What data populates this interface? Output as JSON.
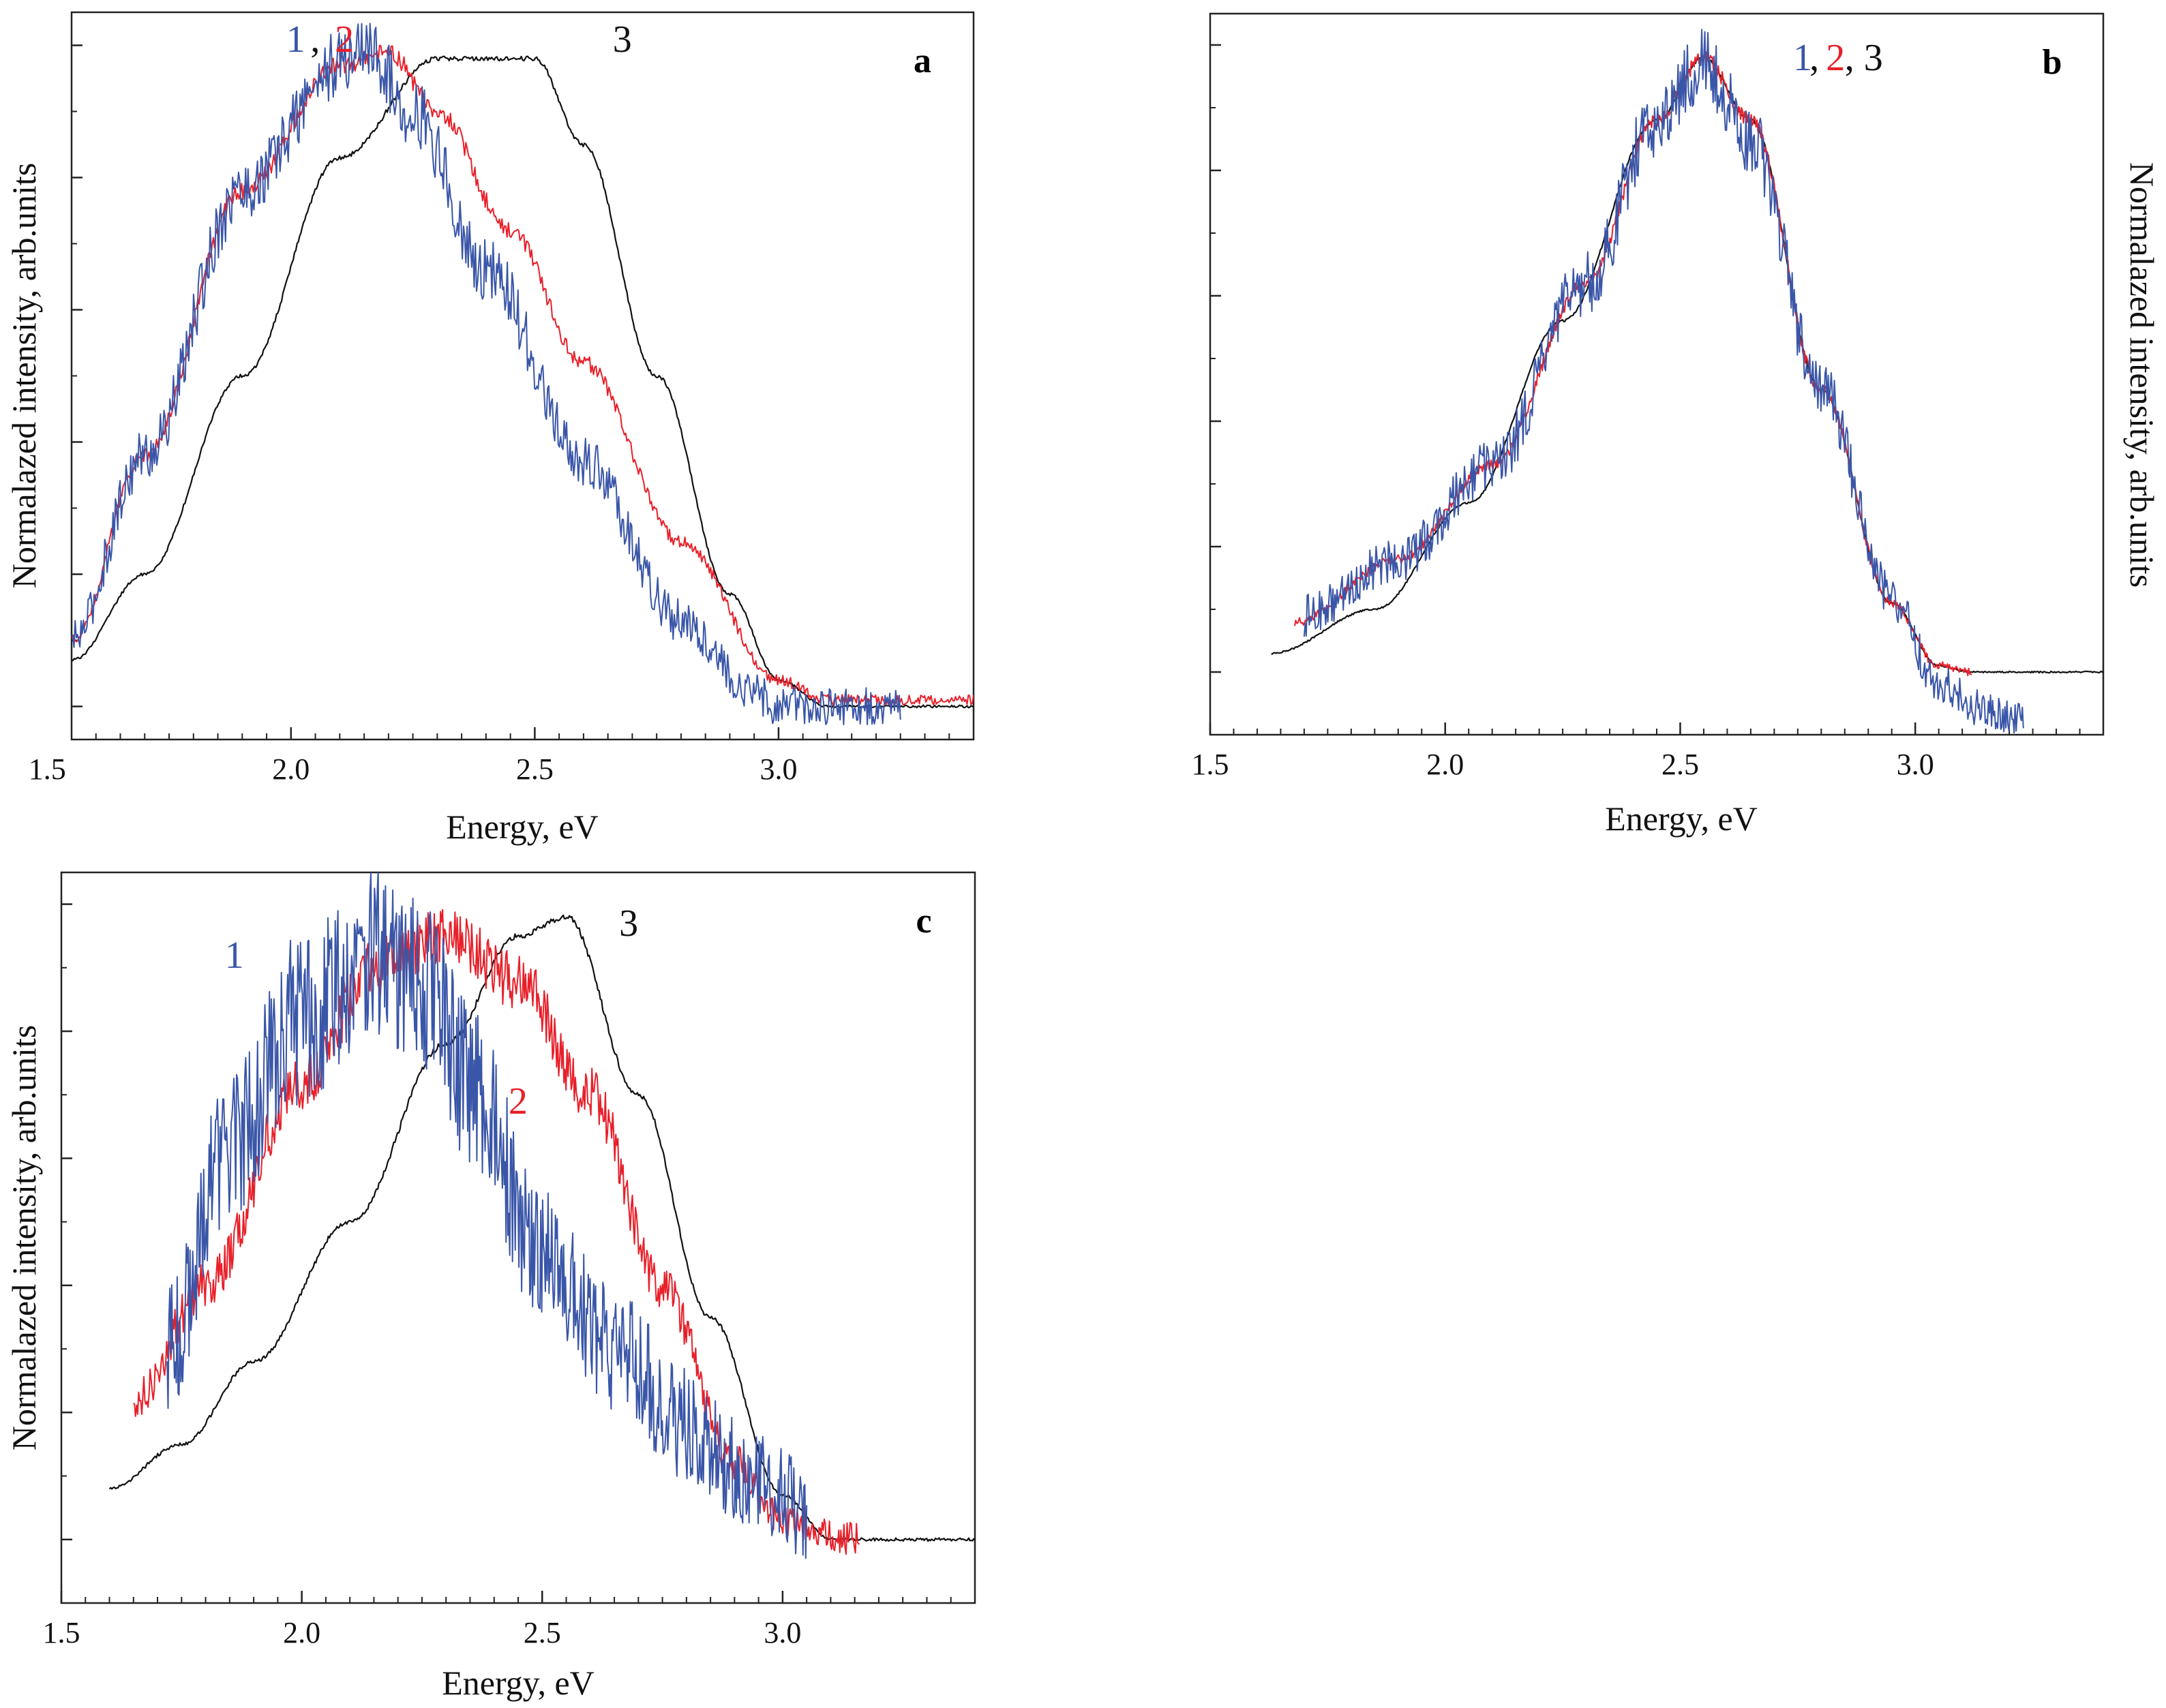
{
  "colors": {
    "series1": "#3a56a8",
    "series2": "#e8202a",
    "series3": "#111111",
    "axis": "#222222"
  },
  "chart_data": [
    {
      "panel": "a",
      "type": "line",
      "xlabel": "Energy, eV",
      "ylabel": "Normalazed intensity, arb.units",
      "ylabel_side": "left",
      "xlim": [
        1.55,
        3.4
      ],
      "ylim": [
        -0.05,
        1.05
      ],
      "x_ticks": [
        1.5,
        2.0,
        2.5,
        3.0
      ],
      "x_tick_labels": [
        "1.5",
        "2.0",
        "2.5",
        "3.0"
      ],
      "y_tick_count": 6,
      "show_xlabel": true,
      "labels": [
        {
          "text": "1",
          "series": "1",
          "at_x": 1.99,
          "at_y": 0.99
        },
        {
          "text": ",",
          "series": "3",
          "at_x": 2.04,
          "at_y": 0.99
        },
        {
          "text": "2",
          "series": "2",
          "at_x": 2.09,
          "at_y": 0.99
        },
        {
          "text": "3",
          "series": "3",
          "at_x": 2.66,
          "at_y": 0.99
        }
      ],
      "series": [
        {
          "name": "1",
          "color": "#3a56a8",
          "x_start": 1.55,
          "x_end": 3.25,
          "noise": 0.045,
          "x": [
            1.55,
            1.7,
            1.9,
            2.1,
            2.15,
            2.25,
            2.4,
            2.6,
            2.8,
            2.95,
            3.0,
            3.1,
            3.25
          ],
          "y": [
            0.1,
            0.38,
            0.78,
            0.97,
            1.0,
            0.9,
            0.66,
            0.37,
            0.13,
            0.02,
            0.0,
            0.0,
            0.0
          ]
        },
        {
          "name": "2",
          "color": "#e8202a",
          "x_start": 1.55,
          "x_end": 3.4,
          "noise": 0.012,
          "x": [
            1.55,
            1.7,
            1.9,
            2.1,
            2.2,
            2.3,
            2.45,
            2.6,
            2.8,
            3.0,
            3.1,
            3.4
          ],
          "y": [
            0.1,
            0.38,
            0.78,
            0.97,
            0.99,
            0.9,
            0.72,
            0.52,
            0.25,
            0.04,
            0.01,
            0.01
          ]
        },
        {
          "name": "3",
          "color": "#111111",
          "x_start": 1.55,
          "x_end": 3.4,
          "noise": 0.003,
          "x": [
            1.55,
            1.7,
            1.9,
            2.1,
            2.3,
            2.5,
            2.6,
            2.75,
            2.9,
            3.0,
            3.1,
            3.4
          ],
          "y": [
            0.07,
            0.2,
            0.5,
            0.83,
            0.98,
            0.98,
            0.85,
            0.5,
            0.17,
            0.04,
            0.0,
            0.0
          ]
        }
      ]
    },
    {
      "panel": "b",
      "type": "line",
      "xlabel": "Energy, eV",
      "ylabel": "Normalazed intensity, arb.units",
      "ylabel_side": "right",
      "xlim": [
        1.5,
        3.4
      ],
      "ylim": [
        -0.1,
        1.05
      ],
      "x_ticks": [
        1.5,
        2.0,
        2.5,
        3.0
      ],
      "x_tick_labels": [
        "1.5",
        "2.0",
        "2.5",
        "3.0"
      ],
      "y_tick_count": 6,
      "show_xlabel": true,
      "labels": [
        {
          "text": "1",
          "series": "1",
          "at_x": 2.74,
          "at_y": 0.96
        },
        {
          "text": ",",
          "series": "3",
          "at_x": 2.775,
          "at_y": 0.96
        },
        {
          "text": "2",
          "series": "2",
          "at_x": 2.81,
          "at_y": 0.96
        },
        {
          "text": ", 3",
          "series": "3",
          "at_x": 2.85,
          "at_y": 0.96
        }
      ],
      "series": [
        {
          "name": "1",
          "color": "#3a56a8",
          "x_start": 1.7,
          "x_end": 3.23,
          "noise": 0.05,
          "x": [
            1.7,
            1.9,
            2.1,
            2.3,
            2.45,
            2.55,
            2.65,
            2.8,
            2.95,
            3.05,
            3.15,
            3.23
          ],
          "y": [
            0.09,
            0.18,
            0.33,
            0.62,
            0.88,
            0.97,
            0.85,
            0.45,
            0.12,
            -0.02,
            -0.06,
            -0.08
          ]
        },
        {
          "name": "2",
          "color": "#e8202a",
          "x_start": 1.68,
          "x_end": 3.12,
          "noise": 0.01,
          "x": [
            1.68,
            1.9,
            2.1,
            2.3,
            2.45,
            2.55,
            2.65,
            2.8,
            2.95,
            3.05,
            3.12
          ],
          "y": [
            0.08,
            0.18,
            0.33,
            0.62,
            0.88,
            0.98,
            0.88,
            0.45,
            0.11,
            0.01,
            0.0
          ]
        },
        {
          "name": "3",
          "color": "#111111",
          "x_start": 1.63,
          "x_end": 3.4,
          "noise": 0.002,
          "x": [
            1.63,
            1.85,
            2.05,
            2.25,
            2.45,
            2.55,
            2.65,
            2.8,
            2.95,
            3.05,
            3.12,
            3.4
          ],
          "y": [
            0.03,
            0.1,
            0.27,
            0.56,
            0.88,
            0.98,
            0.88,
            0.45,
            0.11,
            0.01,
            0.0,
            0.0
          ]
        }
      ]
    },
    {
      "panel": "c",
      "type": "line",
      "xlabel": "Energy, eV",
      "ylabel": "Normalazed intensity, arb.units",
      "ylabel_side": "left",
      "xlim": [
        1.5,
        3.4
      ],
      "ylim": [
        -0.1,
        1.05
      ],
      "x_ticks": [
        1.5,
        2.0,
        2.5,
        3.0
      ],
      "x_tick_labels": [
        "1.5",
        "2.0",
        "2.5",
        "3.0"
      ],
      "y_tick_count": 6,
      "show_xlabel": true,
      "labels": [
        {
          "text": "1",
          "series": "1",
          "at_x": 1.84,
          "at_y": 0.9
        },
        {
          "text": "2",
          "series": "2",
          "at_x": 2.43,
          "at_y": 0.67
        },
        {
          "text": "3",
          "series": "3",
          "at_x": 2.66,
          "at_y": 0.95
        }
      ],
      "series": [
        {
          "name": "1",
          "color": "#3a56a8",
          "x_start": 1.72,
          "x_end": 3.05,
          "noise": 0.12,
          "x": [
            1.72,
            1.85,
            2.0,
            2.15,
            2.25,
            2.35,
            2.5,
            2.65,
            2.8,
            2.95,
            3.05
          ],
          "y": [
            0.3,
            0.62,
            0.82,
            0.92,
            0.88,
            0.72,
            0.45,
            0.3,
            0.18,
            0.08,
            0.05
          ]
        },
        {
          "name": "2",
          "color": "#e8202a",
          "x_start": 1.65,
          "x_end": 3.16,
          "noise": 0.04,
          "x": [
            1.65,
            1.8,
            2.0,
            2.15,
            2.3,
            2.45,
            2.6,
            2.75,
            2.9,
            3.0,
            3.16
          ],
          "y": [
            0.22,
            0.4,
            0.72,
            0.9,
            0.95,
            0.88,
            0.7,
            0.4,
            0.12,
            0.03,
            0.0
          ]
        },
        {
          "name": "3",
          "color": "#111111",
          "x_start": 1.6,
          "x_end": 3.4,
          "noise": 0.004,
          "x": [
            1.6,
            1.75,
            1.9,
            2.1,
            2.3,
            2.45,
            2.55,
            2.7,
            2.85,
            3.0,
            3.1,
            3.4
          ],
          "y": [
            0.08,
            0.15,
            0.28,
            0.5,
            0.78,
            0.95,
            0.98,
            0.7,
            0.35,
            0.07,
            0.0,
            0.0
          ]
        }
      ]
    }
  ]
}
